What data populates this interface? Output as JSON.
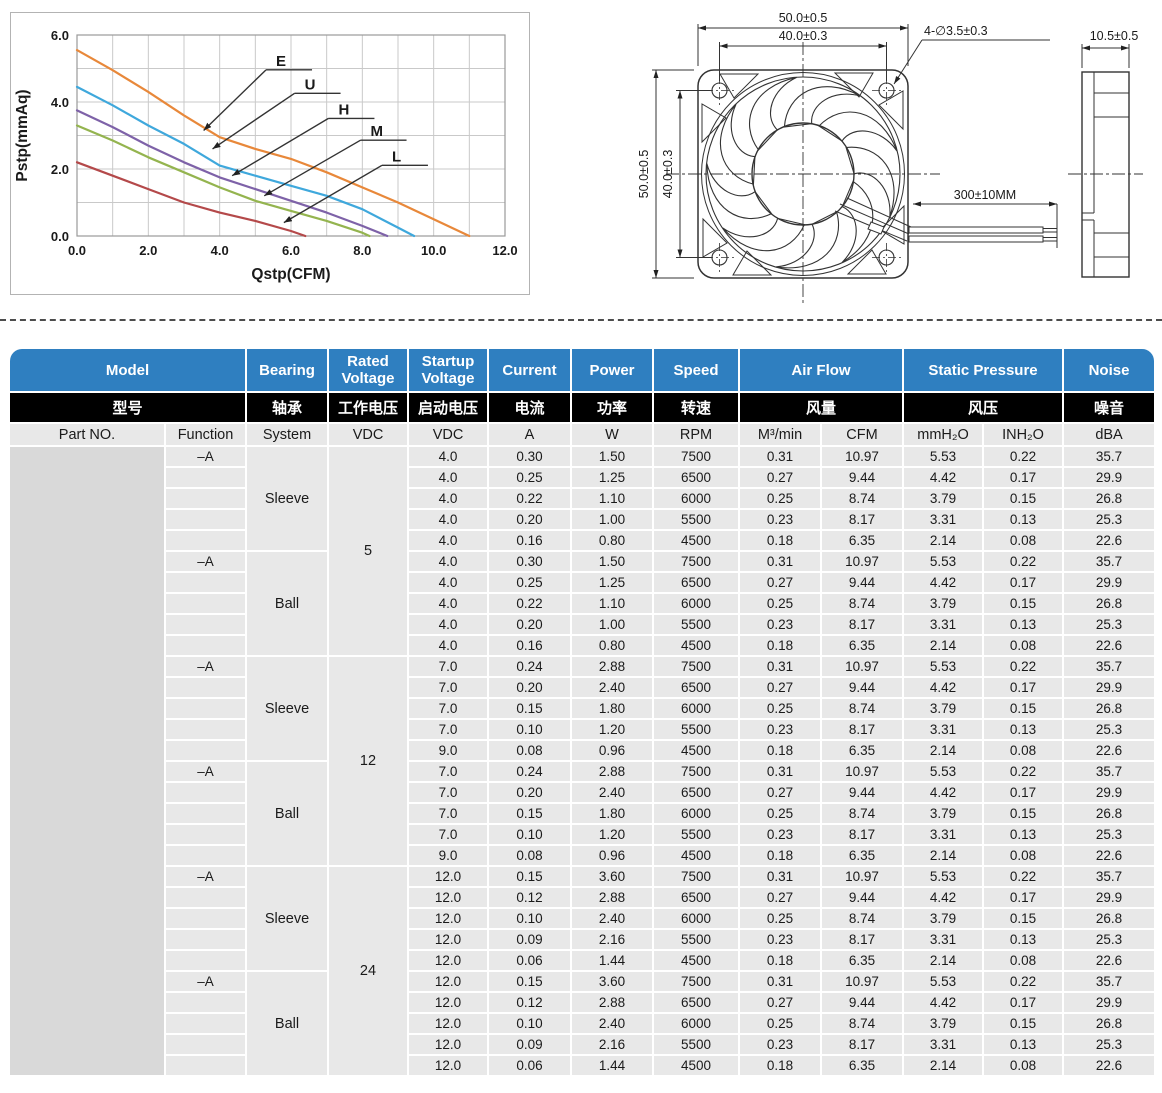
{
  "chart_data": {
    "type": "line",
    "title": "",
    "xlabel": "Qstp(CFM)",
    "ylabel": "Pstp(mmAq)",
    "xlim": [
      0,
      12
    ],
    "ylim": [
      0,
      6
    ],
    "grid_step": 1,
    "grid": true,
    "legend_position": "inline-arrows",
    "xticks": [
      0,
      2,
      4,
      6,
      8,
      10,
      12
    ],
    "xtick_labels": [
      "0.0",
      "2.0",
      "4.0",
      "6.0",
      "8.0",
      "10.0",
      "12.0"
    ],
    "yticks": [
      0,
      2,
      4,
      6
    ],
    "ytick_labels": [
      "0.0",
      "2.0",
      "4.0",
      "6.0"
    ],
    "series": [
      {
        "name": "E",
        "color": "#e8883a",
        "points": [
          [
            0,
            5.55
          ],
          [
            1,
            4.95
          ],
          [
            2,
            4.3
          ],
          [
            3,
            3.6
          ],
          [
            4,
            2.95
          ],
          [
            5,
            2.6
          ],
          [
            6,
            2.3
          ],
          [
            7,
            1.9
          ],
          [
            8,
            1.45
          ],
          [
            9,
            1.0
          ],
          [
            10,
            0.5
          ],
          [
            11,
            0
          ]
        ]
      },
      {
        "name": "U",
        "color": "#3fa8dc",
        "points": [
          [
            0,
            4.45
          ],
          [
            1,
            3.9
          ],
          [
            2,
            3.3
          ],
          [
            3,
            2.75
          ],
          [
            4,
            2.1
          ],
          [
            5,
            1.8
          ],
          [
            6,
            1.5
          ],
          [
            7,
            1.2
          ],
          [
            8,
            0.8
          ],
          [
            9,
            0.25
          ],
          [
            9.45,
            0
          ]
        ]
      },
      {
        "name": "H",
        "color": "#7e62a8",
        "points": [
          [
            0,
            3.75
          ],
          [
            1,
            3.25
          ],
          [
            2,
            2.7
          ],
          [
            3,
            2.2
          ],
          [
            4,
            1.75
          ],
          [
            5,
            1.4
          ],
          [
            6,
            1.05
          ],
          [
            7,
            0.7
          ],
          [
            8,
            0.3
          ],
          [
            8.7,
            0
          ]
        ]
      },
      {
        "name": "M",
        "color": "#94b44f",
        "points": [
          [
            0,
            3.3
          ],
          [
            1,
            2.85
          ],
          [
            2,
            2.35
          ],
          [
            3,
            1.9
          ],
          [
            4,
            1.45
          ],
          [
            5,
            1.05
          ],
          [
            6,
            0.75
          ],
          [
            7,
            0.45
          ],
          [
            8,
            0.1
          ],
          [
            8.2,
            0
          ]
        ]
      },
      {
        "name": "L",
        "color": "#b4494a",
        "points": [
          [
            0,
            2.2
          ],
          [
            1,
            1.8
          ],
          [
            2,
            1.4
          ],
          [
            3,
            1.0
          ],
          [
            4,
            0.7
          ],
          [
            5,
            0.45
          ],
          [
            6,
            0.15
          ],
          [
            6.4,
            0
          ]
        ]
      }
    ],
    "annotations": [
      {
        "label": "E",
        "label_at": [
          5.3,
          5.05
        ],
        "tip": [
          3.55,
          3.15
        ]
      },
      {
        "label": "U",
        "label_at": [
          6.1,
          4.35
        ],
        "tip": [
          3.8,
          2.6
        ]
      },
      {
        "label": "H",
        "label_at": [
          7.05,
          3.6
        ],
        "tip": [
          4.35,
          1.8
        ]
      },
      {
        "label": "M",
        "label_at": [
          7.95,
          2.95
        ],
        "tip": [
          5.25,
          1.2
        ]
      },
      {
        "label": "L",
        "label_at": [
          8.55,
          2.2
        ],
        "tip": [
          5.8,
          0.4
        ]
      }
    ]
  },
  "drawing": {
    "dim_width_top": "50.0±0.5",
    "dim_hole_spacing_top": "40.0±0.3",
    "dim_height_left": "50.0±0.5",
    "dim_hole_spacing_left": "40.0±0.3",
    "dim_hole_label": "4-∅3.5±0.3",
    "dim_wire_length": "300±10MM",
    "dim_depth": "10.5±0.5"
  },
  "table": {
    "header": {
      "en": {
        "model": "Model",
        "bearing": "Bearing",
        "rated_voltage": "Rated Voltage",
        "startup_voltage": "Startup Voltage",
        "current": "Current",
        "power": "Power",
        "speed": "Speed",
        "air_flow": "Air Flow",
        "static_pressure": "Static Pressure",
        "noise": "Noise"
      },
      "cn": {
        "model": "型号",
        "bearing": "轴承",
        "rated_voltage": "工作电压",
        "startup_voltage": "启动电压",
        "current": "电流",
        "power": "功率",
        "speed": "转速",
        "air_flow": "风量",
        "static_pressure": "风压",
        "noise": "噪音"
      },
      "units": {
        "part_no": "Part NO.",
        "function": "Function",
        "system": "System",
        "rated_vdc": "VDC",
        "startup_vdc": "VDC",
        "current": "A",
        "power": "W",
        "speed": "RPM",
        "airflow_m3": "M³/min",
        "airflow_cfm": "CFM",
        "pressure_mmh2o": "mmH₂O",
        "pressure_inh2o": "INH₂O",
        "noise": "dBA"
      }
    },
    "part_no": "",
    "groups": [
      {
        "voltage": "5",
        "systems": [
          {
            "system": "Sleeve",
            "function": "–A",
            "rows": [
              [
                "4.0",
                "0.30",
                "1.50",
                "7500",
                "0.31",
                "10.97",
                "5.53",
                "0.22",
                "35.7"
              ],
              [
                "4.0",
                "0.25",
                "1.25",
                "6500",
                "0.27",
                "9.44",
                "4.42",
                "0.17",
                "29.9"
              ],
              [
                "4.0",
                "0.22",
                "1.10",
                "6000",
                "0.25",
                "8.74",
                "3.79",
                "0.15",
                "26.8"
              ],
              [
                "4.0",
                "0.20",
                "1.00",
                "5500",
                "0.23",
                "8.17",
                "3.31",
                "0.13",
                "25.3"
              ],
              [
                "4.0",
                "0.16",
                "0.80",
                "4500",
                "0.18",
                "6.35",
                "2.14",
                "0.08",
                "22.6"
              ]
            ]
          },
          {
            "system": "Ball",
            "function": "–A",
            "rows": [
              [
                "4.0",
                "0.30",
                "1.50",
                "7500",
                "0.31",
                "10.97",
                "5.53",
                "0.22",
                "35.7"
              ],
              [
                "4.0",
                "0.25",
                "1.25",
                "6500",
                "0.27",
                "9.44",
                "4.42",
                "0.17",
                "29.9"
              ],
              [
                "4.0",
                "0.22",
                "1.10",
                "6000",
                "0.25",
                "8.74",
                "3.79",
                "0.15",
                "26.8"
              ],
              [
                "4.0",
                "0.20",
                "1.00",
                "5500",
                "0.23",
                "8.17",
                "3.31",
                "0.13",
                "25.3"
              ],
              [
                "4.0",
                "0.16",
                "0.80",
                "4500",
                "0.18",
                "6.35",
                "2.14",
                "0.08",
                "22.6"
              ]
            ]
          }
        ]
      },
      {
        "voltage": "12",
        "systems": [
          {
            "system": "Sleeve",
            "function": "–A",
            "rows": [
              [
                "7.0",
                "0.24",
                "2.88",
                "7500",
                "0.31",
                "10.97",
                "5.53",
                "0.22",
                "35.7"
              ],
              [
                "7.0",
                "0.20",
                "2.40",
                "6500",
                "0.27",
                "9.44",
                "4.42",
                "0.17",
                "29.9"
              ],
              [
                "7.0",
                "0.15",
                "1.80",
                "6000",
                "0.25",
                "8.74",
                "3.79",
                "0.15",
                "26.8"
              ],
              [
                "7.0",
                "0.10",
                "1.20",
                "5500",
                "0.23",
                "8.17",
                "3.31",
                "0.13",
                "25.3"
              ],
              [
                "9.0",
                "0.08",
                "0.96",
                "4500",
                "0.18",
                "6.35",
                "2.14",
                "0.08",
                "22.6"
              ]
            ]
          },
          {
            "system": "Ball",
            "function": "–A",
            "rows": [
              [
                "7.0",
                "0.24",
                "2.88",
                "7500",
                "0.31",
                "10.97",
                "5.53",
                "0.22",
                "35.7"
              ],
              [
                "7.0",
                "0.20",
                "2.40",
                "6500",
                "0.27",
                "9.44",
                "4.42",
                "0.17",
                "29.9"
              ],
              [
                "7.0",
                "0.15",
                "1.80",
                "6000",
                "0.25",
                "8.74",
                "3.79",
                "0.15",
                "26.8"
              ],
              [
                "7.0",
                "0.10",
                "1.20",
                "5500",
                "0.23",
                "8.17",
                "3.31",
                "0.13",
                "25.3"
              ],
              [
                "9.0",
                "0.08",
                "0.96",
                "4500",
                "0.18",
                "6.35",
                "2.14",
                "0.08",
                "22.6"
              ]
            ]
          }
        ]
      },
      {
        "voltage": "24",
        "systems": [
          {
            "system": "Sleeve",
            "function": "–A",
            "rows": [
              [
                "12.0",
                "0.15",
                "3.60",
                "7500",
                "0.31",
                "10.97",
                "5.53",
                "0.22",
                "35.7"
              ],
              [
                "12.0",
                "0.12",
                "2.88",
                "6500",
                "0.27",
                "9.44",
                "4.42",
                "0.17",
                "29.9"
              ],
              [
                "12.0",
                "0.10",
                "2.40",
                "6000",
                "0.25",
                "8.74",
                "3.79",
                "0.15",
                "26.8"
              ],
              [
                "12.0",
                "0.09",
                "2.16",
                "5500",
                "0.23",
                "8.17",
                "3.31",
                "0.13",
                "25.3"
              ],
              [
                "12.0",
                "0.06",
                "1.44",
                "4500",
                "0.18",
                "6.35",
                "2.14",
                "0.08",
                "22.6"
              ]
            ]
          },
          {
            "system": "Ball",
            "function": "–A",
            "rows": [
              [
                "12.0",
                "0.15",
                "3.60",
                "7500",
                "0.31",
                "10.97",
                "5.53",
                "0.22",
                "35.7"
              ],
              [
                "12.0",
                "0.12",
                "2.88",
                "6500",
                "0.27",
                "9.44",
                "4.42",
                "0.17",
                "29.9"
              ],
              [
                "12.0",
                "0.10",
                "2.40",
                "6000",
                "0.25",
                "8.74",
                "3.79",
                "0.15",
                "26.8"
              ],
              [
                "12.0",
                "0.09",
                "2.16",
                "5500",
                "0.23",
                "8.17",
                "3.31",
                "0.13",
                "25.3"
              ],
              [
                "12.0",
                "0.06",
                "1.44",
                "4500",
                "0.18",
                "6.35",
                "2.14",
                "0.08",
                "22.6"
              ]
            ]
          }
        ]
      }
    ]
  },
  "colors": {
    "header_blue": "#2f7fc0",
    "header_black": "#000000",
    "cell_gray": "#e8e8e8",
    "part_cell_gray": "#d9d9d9"
  }
}
